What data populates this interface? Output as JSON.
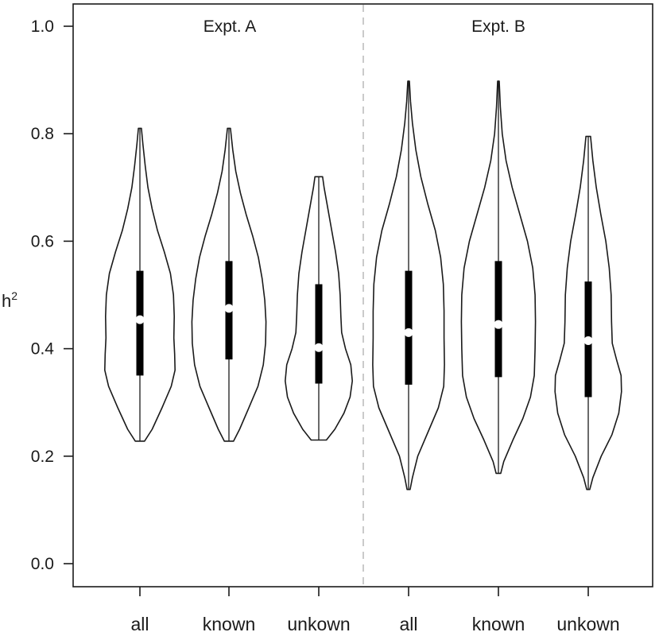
{
  "chart_data": {
    "type": "violin",
    "ylabel": "h",
    "ylabel_superscript": "2",
    "ylim": [
      0,
      1.0
    ],
    "yticks": [
      {
        "value": 0.0,
        "label": "0.0"
      },
      {
        "value": 0.2,
        "label": "0.2"
      },
      {
        "value": 0.4,
        "label": "0.4"
      },
      {
        "value": 0.6,
        "label": "0.6"
      },
      {
        "value": 0.8,
        "label": "0.8"
      },
      {
        "value": 1.0,
        "label": "1.0"
      }
    ],
    "panels": [
      {
        "label": "Expt. A",
        "categories": [
          "all",
          "known",
          "unkown"
        ]
      },
      {
        "label": "Expt. B",
        "categories": [
          "all",
          "known",
          "unkown"
        ]
      }
    ],
    "grid": false,
    "panel_divider": "dashed",
    "violins": [
      {
        "panel": "Expt. A",
        "category": "all",
        "min": 0.228,
        "max": 0.81,
        "q1": 0.35,
        "median": 0.454,
        "q3": 0.545,
        "density": [
          [
            0.228,
            0.12
          ],
          [
            0.25,
            0.32
          ],
          [
            0.29,
            0.58
          ],
          [
            0.33,
            0.82
          ],
          [
            0.36,
            0.92
          ],
          [
            0.39,
            0.91
          ],
          [
            0.42,
            0.89
          ],
          [
            0.46,
            0.9
          ],
          [
            0.5,
            0.88
          ],
          [
            0.54,
            0.8
          ],
          [
            0.58,
            0.64
          ],
          [
            0.62,
            0.46
          ],
          [
            0.66,
            0.32
          ],
          [
            0.7,
            0.21
          ],
          [
            0.74,
            0.14
          ],
          [
            0.78,
            0.08
          ],
          [
            0.81,
            0.04
          ]
        ]
      },
      {
        "panel": "Expt. A",
        "category": "known",
        "min": 0.228,
        "max": 0.81,
        "q1": 0.38,
        "median": 0.475,
        "q3": 0.563,
        "density": [
          [
            0.228,
            0.12
          ],
          [
            0.25,
            0.28
          ],
          [
            0.29,
            0.52
          ],
          [
            0.33,
            0.76
          ],
          [
            0.37,
            0.9
          ],
          [
            0.41,
            0.96
          ],
          [
            0.45,
            0.97
          ],
          [
            0.49,
            0.94
          ],
          [
            0.53,
            0.87
          ],
          [
            0.57,
            0.77
          ],
          [
            0.61,
            0.62
          ],
          [
            0.65,
            0.45
          ],
          [
            0.69,
            0.3
          ],
          [
            0.73,
            0.18
          ],
          [
            0.77,
            0.1
          ],
          [
            0.81,
            0.04
          ]
        ]
      },
      {
        "panel": "Expt. A",
        "category": "unkown",
        "min": 0.23,
        "max": 0.72,
        "q1": 0.335,
        "median": 0.402,
        "q3": 0.52,
        "density": [
          [
            0.23,
            0.2
          ],
          [
            0.25,
            0.42
          ],
          [
            0.28,
            0.66
          ],
          [
            0.31,
            0.82
          ],
          [
            0.34,
            0.88
          ],
          [
            0.37,
            0.84
          ],
          [
            0.4,
            0.7
          ],
          [
            0.43,
            0.6
          ],
          [
            0.46,
            0.58
          ],
          [
            0.5,
            0.56
          ],
          [
            0.54,
            0.52
          ],
          [
            0.58,
            0.44
          ],
          [
            0.62,
            0.34
          ],
          [
            0.66,
            0.24
          ],
          [
            0.7,
            0.14
          ],
          [
            0.72,
            0.1
          ]
        ]
      },
      {
        "panel": "Expt. B",
        "category": "all",
        "min": 0.138,
        "max": 0.898,
        "q1": 0.333,
        "median": 0.43,
        "q3": 0.545,
        "density": [
          [
            0.138,
            0.04
          ],
          [
            0.16,
            0.1
          ],
          [
            0.2,
            0.24
          ],
          [
            0.25,
            0.54
          ],
          [
            0.29,
            0.78
          ],
          [
            0.33,
            0.92
          ],
          [
            0.37,
            0.94
          ],
          [
            0.42,
            0.93
          ],
          [
            0.47,
            0.93
          ],
          [
            0.52,
            0.91
          ],
          [
            0.57,
            0.84
          ],
          [
            0.62,
            0.7
          ],
          [
            0.67,
            0.5
          ],
          [
            0.72,
            0.32
          ],
          [
            0.77,
            0.19
          ],
          [
            0.82,
            0.1
          ],
          [
            0.86,
            0.05
          ],
          [
            0.898,
            0.02
          ]
        ]
      },
      {
        "panel": "Expt. B",
        "category": "known",
        "min": 0.168,
        "max": 0.898,
        "q1": 0.347,
        "median": 0.445,
        "q3": 0.563,
        "density": [
          [
            0.168,
            0.06
          ],
          [
            0.19,
            0.14
          ],
          [
            0.23,
            0.38
          ],
          [
            0.27,
            0.64
          ],
          [
            0.31,
            0.84
          ],
          [
            0.35,
            0.94
          ],
          [
            0.4,
            0.96
          ],
          [
            0.45,
            0.97
          ],
          [
            0.5,
            0.96
          ],
          [
            0.55,
            0.9
          ],
          [
            0.6,
            0.76
          ],
          [
            0.65,
            0.56
          ],
          [
            0.7,
            0.36
          ],
          [
            0.75,
            0.2
          ],
          [
            0.8,
            0.1
          ],
          [
            0.85,
            0.05
          ],
          [
            0.898,
            0.02
          ]
        ]
      },
      {
        "panel": "Expt. B",
        "category": "unkown",
        "min": 0.138,
        "max": 0.795,
        "q1": 0.31,
        "median": 0.415,
        "q3": 0.525,
        "density": [
          [
            0.138,
            0.04
          ],
          [
            0.16,
            0.12
          ],
          [
            0.2,
            0.34
          ],
          [
            0.24,
            0.62
          ],
          [
            0.28,
            0.8
          ],
          [
            0.32,
            0.87
          ],
          [
            0.35,
            0.86
          ],
          [
            0.38,
            0.74
          ],
          [
            0.41,
            0.63
          ],
          [
            0.45,
            0.61
          ],
          [
            0.5,
            0.6
          ],
          [
            0.55,
            0.55
          ],
          [
            0.6,
            0.46
          ],
          [
            0.65,
            0.33
          ],
          [
            0.7,
            0.21
          ],
          [
            0.75,
            0.12
          ],
          [
            0.795,
            0.06
          ]
        ]
      }
    ]
  }
}
